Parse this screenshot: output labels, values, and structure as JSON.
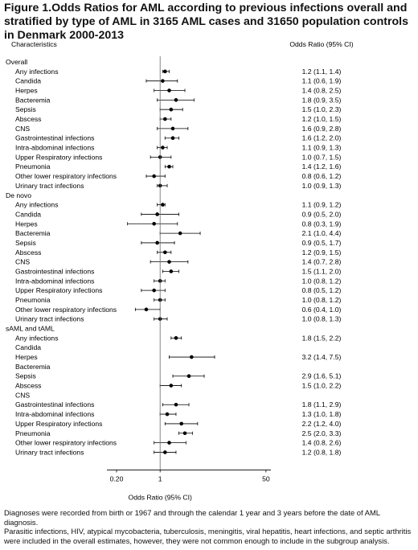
{
  "figure": {
    "title": "Figure 1.Odds Ratios for AML according to previous infections overall and stratified by type of AML in 3165 AML cases and 31650 population controls in Denmark 2000-2013",
    "footnotes": [
      "Diagnoses were recorded from birth or 1967 and through the calendar 1 year and 3 years before the date of AML diagnosis.",
      "Parasitic infections, HIV, atypical mycobacteria, tuberculosis, meningitis, viral hepatitis, heart infections, and septic arthritis were included in the overall estimates, however, they were not common enough to include in the subgroup analysis."
    ]
  },
  "chart_data": {
    "type": "forest",
    "col_characteristics": "Characteristics",
    "col_or": "Odds Ratio (95% CI)",
    "xlabel": "Odds Ratio (95% CI)",
    "xscale": "log",
    "xlim": [
      0.14,
      60
    ],
    "xticks": [
      {
        "value": 0.2,
        "label": "0.20"
      },
      {
        "value": 1,
        "label": "1"
      },
      {
        "value": 50,
        "label": "50"
      }
    ],
    "reference_line": 1,
    "groups": [
      {
        "name": "Overall",
        "rows": [
          {
            "label": "Any infections",
            "or": 1.2,
            "lo": 1.1,
            "hi": 1.4,
            "text": "1.2 (1.1, 1.4)"
          },
          {
            "label": "Candida",
            "or": 1.1,
            "lo": 0.6,
            "hi": 1.9,
            "text": "1.1 (0.6, 1.9)"
          },
          {
            "label": "Herpes",
            "or": 1.4,
            "lo": 0.8,
            "hi": 2.5,
            "text": "1.4 (0.8, 2.5)"
          },
          {
            "label": "Bacteremia",
            "or": 1.8,
            "lo": 0.9,
            "hi": 3.5,
            "text": "1.8 (0.9, 3.5)"
          },
          {
            "label": "Sepsis",
            "or": 1.5,
            "lo": 1.0,
            "hi": 2.3,
            "text": "1.5 (1.0, 2.3)"
          },
          {
            "label": "Abscess",
            "or": 1.2,
            "lo": 1.0,
            "hi": 1.5,
            "text": "1.2 (1.0, 1.5)"
          },
          {
            "label": "CNS",
            "or": 1.6,
            "lo": 0.9,
            "hi": 2.8,
            "text": "1.6 (0.9, 2.8)"
          },
          {
            "label": "Gastrointestinal infections",
            "or": 1.6,
            "lo": 1.2,
            "hi": 2.0,
            "text": "1.6 (1.2, 2.0)"
          },
          {
            "label": "Intra-abdominal infections",
            "or": 1.1,
            "lo": 0.9,
            "hi": 1.3,
            "text": "1.1 (0.9, 1.3)"
          },
          {
            "label": "Upper Respiratory infections",
            "or": 1.0,
            "lo": 0.7,
            "hi": 1.5,
            "text": "1.0 (0.7, 1.5)"
          },
          {
            "label": "Pneumonia",
            "or": 1.4,
            "lo": 1.2,
            "hi": 1.6,
            "text": "1.4 (1.2, 1.6)"
          },
          {
            "label": "Other lower respiratory infections",
            "or": 0.8,
            "lo": 0.6,
            "hi": 1.2,
            "text": "0.8 (0.6, 1.2)"
          },
          {
            "label": "Urinary tract infections",
            "or": 1.0,
            "lo": 0.9,
            "hi": 1.3,
            "text": "1.0 (0.9, 1.3)"
          }
        ]
      },
      {
        "name": "De novo",
        "rows": [
          {
            "label": "Any infections",
            "or": 1.1,
            "lo": 0.9,
            "hi": 1.2,
            "text": "1.1 (0.9, 1.2)"
          },
          {
            "label": "Candida",
            "or": 0.9,
            "lo": 0.5,
            "hi": 2.0,
            "text": "0.9 (0.5, 2.0)"
          },
          {
            "label": "Herpes",
            "or": 0.8,
            "lo": 0.3,
            "hi": 1.9,
            "text": "0.8 (0.3, 1.9)"
          },
          {
            "label": "Bacteremia",
            "or": 2.1,
            "lo": 1.0,
            "hi": 4.4,
            "text": "2.1 (1.0, 4.4)"
          },
          {
            "label": "Sepsis",
            "or": 0.9,
            "lo": 0.5,
            "hi": 1.7,
            "text": "0.9 (0.5, 1.7)"
          },
          {
            "label": "Abscess",
            "or": 1.2,
            "lo": 0.9,
            "hi": 1.5,
            "text": "1.2 (0.9, 1.5)"
          },
          {
            "label": "CNS",
            "or": 1.4,
            "lo": 0.7,
            "hi": 2.8,
            "text": "1.4 (0.7, 2.8)"
          },
          {
            "label": "Gastrointestinal infections",
            "or": 1.5,
            "lo": 1.1,
            "hi": 2.0,
            "text": "1.5 (1.1, 2.0)"
          },
          {
            "label": "Intra-abdominal infections",
            "or": 1.0,
            "lo": 0.8,
            "hi": 1.2,
            "text": "1.0 (0.8, 1.2)"
          },
          {
            "label": "Upper Respiratory infections",
            "or": 0.8,
            "lo": 0.5,
            "hi": 1.2,
            "text": "0.8 (0.5, 1.2)"
          },
          {
            "label": "Pneumonia",
            "or": 1.0,
            "lo": 0.8,
            "hi": 1.2,
            "text": "1.0 (0.8, 1.2)"
          },
          {
            "label": "Other lower respiratory infections",
            "or": 0.6,
            "lo": 0.4,
            "hi": 1.0,
            "text": "0.6 (0.4, 1.0)"
          },
          {
            "label": "Urinary tract infections",
            "or": 1.0,
            "lo": 0.8,
            "hi": 1.3,
            "text": "1.0 (0.8, 1.3)"
          }
        ]
      },
      {
        "name": "sAML and tAML",
        "rows": [
          {
            "label": "Any infections",
            "or": 1.8,
            "lo": 1.5,
            "hi": 2.2,
            "text": "1.8 (1.5, 2.2)"
          },
          {
            "label": "Candida",
            "or": null,
            "lo": null,
            "hi": null,
            "text": ""
          },
          {
            "label": "Herpes",
            "or": 3.2,
            "lo": 1.4,
            "hi": 7.5,
            "text": "3.2 (1.4, 7.5)"
          },
          {
            "label": "Bacteremia",
            "or": null,
            "lo": null,
            "hi": null,
            "text": ""
          },
          {
            "label": "Sepsis",
            "or": 2.9,
            "lo": 1.6,
            "hi": 5.1,
            "text": "2.9 (1.6, 5.1)"
          },
          {
            "label": "Abscess",
            "or": 1.5,
            "lo": 1.0,
            "hi": 2.2,
            "text": "1.5 (1.0, 2.2)"
          },
          {
            "label": "CNS",
            "or": null,
            "lo": null,
            "hi": null,
            "text": ""
          },
          {
            "label": "Gastrointestinal infections",
            "or": 1.8,
            "lo": 1.1,
            "hi": 2.9,
            "text": "1.8 (1.1, 2.9)"
          },
          {
            "label": "Intra-abdominal infections",
            "or": 1.3,
            "lo": 1.0,
            "hi": 1.8,
            "text": "1.3 (1.0, 1.8)"
          },
          {
            "label": "Upper Respiratory infections",
            "or": 2.2,
            "lo": 1.2,
            "hi": 4.0,
            "text": "2.2 (1.2, 4.0)"
          },
          {
            "label": "Pneumonia",
            "or": 2.5,
            "lo": 2.0,
            "hi": 3.3,
            "text": "2.5 (2.0, 3.3)"
          },
          {
            "label": "Other lower respiratory infections",
            "or": 1.4,
            "lo": 0.8,
            "hi": 2.6,
            "text": "1.4 (0.8, 2.6)"
          },
          {
            "label": "Urinary tract infections",
            "or": 1.2,
            "lo": 0.8,
            "hi": 1.8,
            "text": "1.2 (0.8, 1.8)"
          }
        ]
      }
    ]
  }
}
